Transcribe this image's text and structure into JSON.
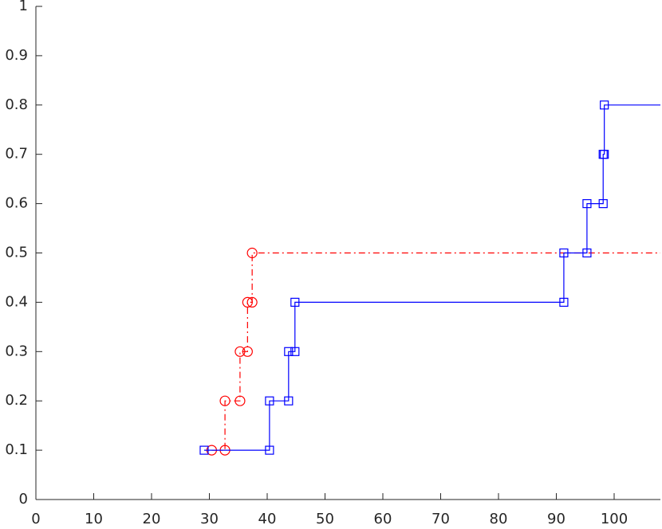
{
  "chart_data": {
    "type": "line",
    "xlim": [
      0,
      108
    ],
    "ylim": [
      0,
      1
    ],
    "xticks": [
      0,
      10,
      20,
      30,
      40,
      50,
      60,
      70,
      80,
      90,
      100
    ],
    "yticks": [
      0,
      0.1,
      0.2,
      0.3,
      0.4,
      0.5,
      0.6,
      0.7,
      0.8,
      0.9,
      1
    ],
    "grid": false,
    "series": [
      {
        "color": "#ff0000",
        "marker": "circle",
        "line_style": "dashdot",
        "x": [
          30.4,
          32.7,
          32.7,
          35.3,
          35.3,
          36.6,
          36.6,
          37.4,
          37.4
        ],
        "values": [
          0.1,
          0.1,
          0.2,
          0.2,
          0.3,
          0.3,
          0.4,
          0.4,
          0.5
        ]
      },
      {
        "color": "#0000ff",
        "marker": "square",
        "line_style": "solid",
        "x": [
          29.1,
          40.4,
          40.4,
          43.7,
          43.7,
          44.8,
          44.8,
          91.3,
          91.3,
          95.3,
          95.3,
          98.1,
          98.1,
          98.3,
          98.3
        ],
        "values": [
          0.1,
          0.1,
          0.2,
          0.2,
          0.3,
          0.3,
          0.4,
          0.4,
          0.5,
          0.5,
          0.6,
          0.6,
          0.7,
          0.7,
          0.8
        ]
      }
    ]
  }
}
